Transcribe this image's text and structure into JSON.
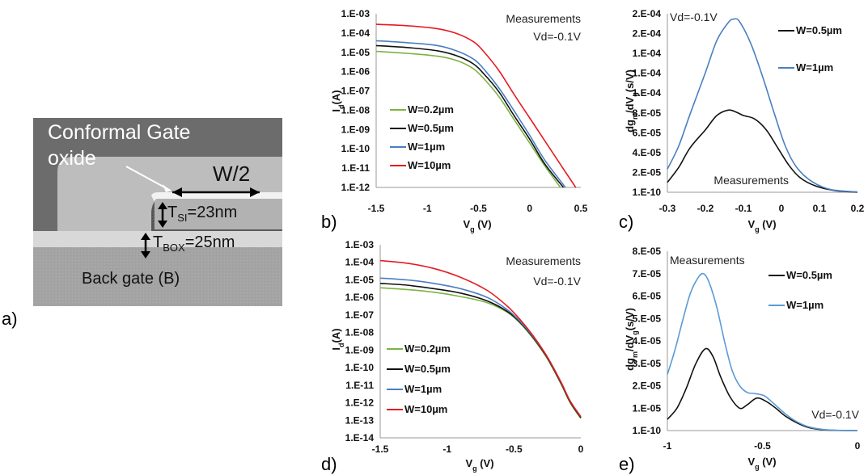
{
  "panels": {
    "a": {
      "label": "a)",
      "texts": {
        "gate": "Conformal Gate",
        "oxide": "oxide",
        "width": "W/2",
        "tsi": "T",
        "tsi_sub": "SI",
        "tsi_val": "=23nm",
        "tbox": "T",
        "tbox_sub": "BOX",
        "tbox_val": "=25nm",
        "back": "Back gate (B)"
      }
    },
    "b": {
      "label": "b)"
    },
    "c": {
      "label": "c)"
    },
    "d": {
      "label": "d)"
    },
    "e": {
      "label": "e)"
    }
  },
  "colors": {
    "w02": "#7cb342",
    "w05": "#111111",
    "w1": "#4a7fc1",
    "w10": "#e51c23",
    "w1_light": "#5b9bd5"
  },
  "chart_data": [
    {
      "id": "b",
      "type": "line",
      "log_y": true,
      "xlim": [
        -1.5,
        0.5
      ],
      "ylim_exp": [
        -12,
        -3
      ],
      "x_ticks": [
        -1.5,
        -1,
        -0.5,
        0,
        0.5
      ],
      "x_tick_labels": [
        "-1.5",
        "-1",
        "-0.5",
        "0",
        "0.5"
      ],
      "y_tick_labels": [
        "1.E-03",
        "1.E-04",
        "1.E-05",
        "1.E-06",
        "1.E-07",
        "1.E-08",
        "1.E-09",
        "1.E-10",
        "1.E-11",
        "1.E-12"
      ],
      "xlabel": "V",
      "xlabel_sub": "g",
      "xlabel_unit": " (V)",
      "ylabel": "I",
      "ylabel_sub": "d",
      "ylabel_unit": "(A)",
      "annotations": [
        "Measurements",
        "Vd=-0.1V"
      ],
      "legend_position": "bottom-left",
      "series": [
        {
          "name": "W=0.2µm",
          "color": "#7cb342",
          "points": [
            [
              -1.5,
              -4.95
            ],
            [
              -1.2,
              -5.05
            ],
            [
              -0.9,
              -5.2
            ],
            [
              -0.7,
              -5.45
            ],
            [
              -0.55,
              -5.85
            ],
            [
              -0.45,
              -6.35
            ],
            [
              -0.3,
              -7.3
            ],
            [
              -0.15,
              -8.5
            ],
            [
              0,
              -9.7
            ],
            [
              0.15,
              -10.9
            ],
            [
              0.3,
              -12
            ]
          ]
        },
        {
          "name": "W=0.5µm",
          "color": "#111111",
          "points": [
            [
              -1.5,
              -4.65
            ],
            [
              -1.2,
              -4.75
            ],
            [
              -0.9,
              -4.92
            ],
            [
              -0.7,
              -5.2
            ],
            [
              -0.55,
              -5.6
            ],
            [
              -0.45,
              -6.1
            ],
            [
              -0.3,
              -7.05
            ],
            [
              -0.15,
              -8.3
            ],
            [
              0,
              -9.5
            ],
            [
              0.15,
              -10.8
            ],
            [
              0.33,
              -12
            ]
          ]
        },
        {
          "name": "W=1µm",
          "color": "#4a7fc1",
          "points": [
            [
              -1.5,
              -4.4
            ],
            [
              -1.2,
              -4.5
            ],
            [
              -0.9,
              -4.65
            ],
            [
              -0.7,
              -4.95
            ],
            [
              -0.55,
              -5.35
            ],
            [
              -0.45,
              -5.85
            ],
            [
              -0.3,
              -6.85
            ],
            [
              -0.15,
              -8.05
            ],
            [
              0,
              -9.3
            ],
            [
              0.15,
              -10.6
            ],
            [
              0.35,
              -12
            ]
          ]
        },
        {
          "name": "W=10µm",
          "color": "#e51c23",
          "points": [
            [
              -1.5,
              -3.55
            ],
            [
              -1.2,
              -3.62
            ],
            [
              -0.9,
              -3.78
            ],
            [
              -0.7,
              -4.05
            ],
            [
              -0.55,
              -4.45
            ],
            [
              -0.45,
              -4.95
            ],
            [
              -0.3,
              -5.95
            ],
            [
              -0.15,
              -7.2
            ],
            [
              0,
              -8.4
            ],
            [
              0.2,
              -10
            ],
            [
              0.45,
              -12
            ]
          ]
        }
      ]
    },
    {
      "id": "c",
      "type": "line",
      "xlim": [
        -0.3,
        0.2
      ],
      "ylim": [
        0,
        10
      ],
      "x_ticks": [
        -0.3,
        -0.2,
        -0.1,
        0,
        0.1,
        0.2
      ],
      "x_tick_labels": [
        "-0.3",
        "-0.2",
        "-0.1",
        "0",
        "0.1",
        "0.2"
      ],
      "y_tick_labels": [
        "2.E-04",
        "2.E-04",
        "1.E-04",
        "1.E-04",
        "1.E-04",
        "8.E-05",
        "6.E-05",
        "4.E-05",
        "2.E-05",
        "1.E-10"
      ],
      "xlabel": "V",
      "xlabel_sub": "g",
      "xlabel_unit": " (V)",
      "ylabel": "dg",
      "ylabel_sub": "m",
      "ylabel_mid": "/dV",
      "ylabel_sub2": "g",
      "ylabel_unit": "(s/V)",
      "annotations": [
        "Vd=-0.1V",
        "Measurements"
      ],
      "legend_position": "top-right",
      "series": [
        {
          "name": "W=0.5µm",
          "color": "#111111",
          "points": [
            [
              -0.3,
              0.55
            ],
            [
              -0.27,
              1.4
            ],
            [
              -0.24,
              2.5
            ],
            [
              -0.2,
              3.5
            ],
            [
              -0.17,
              4.3
            ],
            [
              -0.14,
              4.6
            ],
            [
              -0.12,
              4.5
            ],
            [
              -0.1,
              4.3
            ],
            [
              -0.07,
              4.1
            ],
            [
              -0.04,
              3.5
            ],
            [
              -0.01,
              2.5
            ],
            [
              0.02,
              1.5
            ],
            [
              0.05,
              0.8
            ],
            [
              0.09,
              0.35
            ],
            [
              0.14,
              0.1
            ],
            [
              0.2,
              0
            ]
          ]
        },
        {
          "name": "W=1µm",
          "color": "#4a7fc1",
          "points": [
            [
              -0.3,
              1.3
            ],
            [
              -0.27,
              2.6
            ],
            [
              -0.24,
              4.4
            ],
            [
              -0.2,
              6.7
            ],
            [
              -0.17,
              8.5
            ],
            [
              -0.14,
              9.5
            ],
            [
              -0.125,
              9.7
            ],
            [
              -0.11,
              9.55
            ],
            [
              -0.08,
              8.3
            ],
            [
              -0.05,
              6.5
            ],
            [
              -0.02,
              4.5
            ],
            [
              0.01,
              2.6
            ],
            [
              0.04,
              1.4
            ],
            [
              0.08,
              0.6
            ],
            [
              0.13,
              0.15
            ],
            [
              0.2,
              0.02
            ]
          ]
        }
      ]
    },
    {
      "id": "d",
      "type": "line",
      "log_y": true,
      "xlim": [
        -1.5,
        0
      ],
      "ylim_exp": [
        -14,
        -3
      ],
      "x_ticks": [
        -1.5,
        -1,
        -0.5,
        0
      ],
      "x_tick_labels": [
        "-1.5",
        "-1",
        "-0.5",
        "0"
      ],
      "y_tick_labels": [
        "1.E-03",
        "1.E-04",
        "1.E-05",
        "1.E-06",
        "1.E-07",
        "1.E-08",
        "1.E-09",
        "1.E-10",
        "1.E-11",
        "1.E-12",
        "1.E-13",
        "1.E-14"
      ],
      "xlabel": "V",
      "xlabel_sub": "g",
      "xlabel_unit": " (V)",
      "ylabel": "I",
      "ylabel_sub": "d",
      "ylabel_unit": "(A)",
      "annotations": [
        "Measurements",
        "Vd=-0.1V"
      ],
      "legend_position": "bottom-left",
      "series": [
        {
          "name": "W=0.2µm",
          "color": "#7cb342",
          "points": [
            [
              -1.5,
              -5.45
            ],
            [
              -1.3,
              -5.55
            ],
            [
              -1.1,
              -5.7
            ],
            [
              -0.9,
              -5.95
            ],
            [
              -0.7,
              -6.3
            ],
            [
              -0.55,
              -6.85
            ],
            [
              -0.45,
              -7.5
            ],
            [
              -0.35,
              -8.4
            ],
            [
              -0.25,
              -9.5
            ],
            [
              -0.15,
              -10.9
            ],
            [
              -0.08,
              -12
            ],
            [
              0,
              -12.9
            ]
          ]
        },
        {
          "name": "W=0.5µm",
          "color": "#111111",
          "points": [
            [
              -1.5,
              -5.2
            ],
            [
              -1.3,
              -5.3
            ],
            [
              -1.1,
              -5.5
            ],
            [
              -0.9,
              -5.75
            ],
            [
              -0.7,
              -6.2
            ],
            [
              -0.55,
              -6.8
            ],
            [
              -0.45,
              -7.45
            ],
            [
              -0.35,
              -8.35
            ],
            [
              -0.25,
              -9.45
            ],
            [
              -0.15,
              -10.85
            ],
            [
              -0.08,
              -11.95
            ],
            [
              0,
              -12.85
            ]
          ]
        },
        {
          "name": "W=1µm",
          "color": "#4a7fc1",
          "points": [
            [
              -1.5,
              -4.9
            ],
            [
              -1.3,
              -5.0
            ],
            [
              -1.1,
              -5.2
            ],
            [
              -0.9,
              -5.5
            ],
            [
              -0.7,
              -6.0
            ],
            [
              -0.55,
              -6.7
            ],
            [
              -0.45,
              -7.4
            ],
            [
              -0.35,
              -8.3
            ],
            [
              -0.25,
              -9.4
            ],
            [
              -0.15,
              -10.8
            ],
            [
              -0.08,
              -11.9
            ],
            [
              0,
              -12.8
            ]
          ]
        },
        {
          "name": "W=10µm",
          "color": "#e51c23",
          "points": [
            [
              -1.5,
              -3.9
            ],
            [
              -1.3,
              -4.05
            ],
            [
              -1.1,
              -4.35
            ],
            [
              -0.9,
              -4.85
            ],
            [
              -0.7,
              -5.6
            ],
            [
              -0.55,
              -6.5
            ],
            [
              -0.45,
              -7.3
            ],
            [
              -0.35,
              -8.25
            ],
            [
              -0.25,
              -9.4
            ],
            [
              -0.15,
              -10.8
            ],
            [
              -0.08,
              -11.9
            ],
            [
              0,
              -12.8
            ]
          ]
        }
      ]
    },
    {
      "id": "e",
      "type": "line",
      "xlim": [
        -1,
        0
      ],
      "ylim": [
        0,
        8
      ],
      "x_ticks": [
        -1,
        -0.5,
        0
      ],
      "x_tick_labels": [
        "-1",
        "-0.5",
        "0"
      ],
      "y_tick_labels": [
        "8.E-05",
        "7.E-05",
        "6.E-05",
        "5.E-05",
        "4.E-05",
        "3.E-05",
        "2.E-05",
        "1.E-05",
        "1.E-10"
      ],
      "xlabel": "V",
      "xlabel_sub": "g",
      "xlabel_unit": " (V)",
      "ylabel": "dg",
      "ylabel_sub": "m",
      "ylabel_mid": "/dV",
      "ylabel_sub2": "g",
      "ylabel_unit": "(s/V)",
      "annotations": [
        "Measurements",
        "Vd=-0.1V"
      ],
      "legend_position": "top-right",
      "series": [
        {
          "name": "W=0.5µm",
          "color": "#111111",
          "points": [
            [
              -1,
              0.5
            ],
            [
              -0.95,
              1.0
            ],
            [
              -0.9,
              1.9
            ],
            [
              -0.85,
              3.0
            ],
            [
              -0.8,
              3.65
            ],
            [
              -0.76,
              3.3
            ],
            [
              -0.72,
              2.4
            ],
            [
              -0.67,
              1.5
            ],
            [
              -0.62,
              1.0
            ],
            [
              -0.58,
              1.15
            ],
            [
              -0.53,
              1.45
            ],
            [
              -0.48,
              1.3
            ],
            [
              -0.43,
              1.0
            ],
            [
              -0.38,
              0.65
            ],
            [
              -0.32,
              0.35
            ],
            [
              -0.25,
              0.12
            ],
            [
              -0.15,
              0.02
            ],
            [
              0,
              0
            ]
          ]
        },
        {
          "name": "W=1µm",
          "color": "#5b9bd5",
          "points": [
            [
              -1,
              2.5
            ],
            [
              -0.96,
              3.6
            ],
            [
              -0.92,
              4.9
            ],
            [
              -0.88,
              6.1
            ],
            [
              -0.84,
              6.8
            ],
            [
              -0.81,
              7.0
            ],
            [
              -0.78,
              6.6
            ],
            [
              -0.74,
              5.5
            ],
            [
              -0.7,
              4.0
            ],
            [
              -0.66,
              2.7
            ],
            [
              -0.62,
              2.0
            ],
            [
              -0.58,
              1.7
            ],
            [
              -0.54,
              1.65
            ],
            [
              -0.49,
              1.55
            ],
            [
              -0.44,
              1.2
            ],
            [
              -0.38,
              0.75
            ],
            [
              -0.32,
              0.4
            ],
            [
              -0.25,
              0.15
            ],
            [
              -0.15,
              0.03
            ],
            [
              0,
              0
            ]
          ]
        }
      ]
    }
  ]
}
